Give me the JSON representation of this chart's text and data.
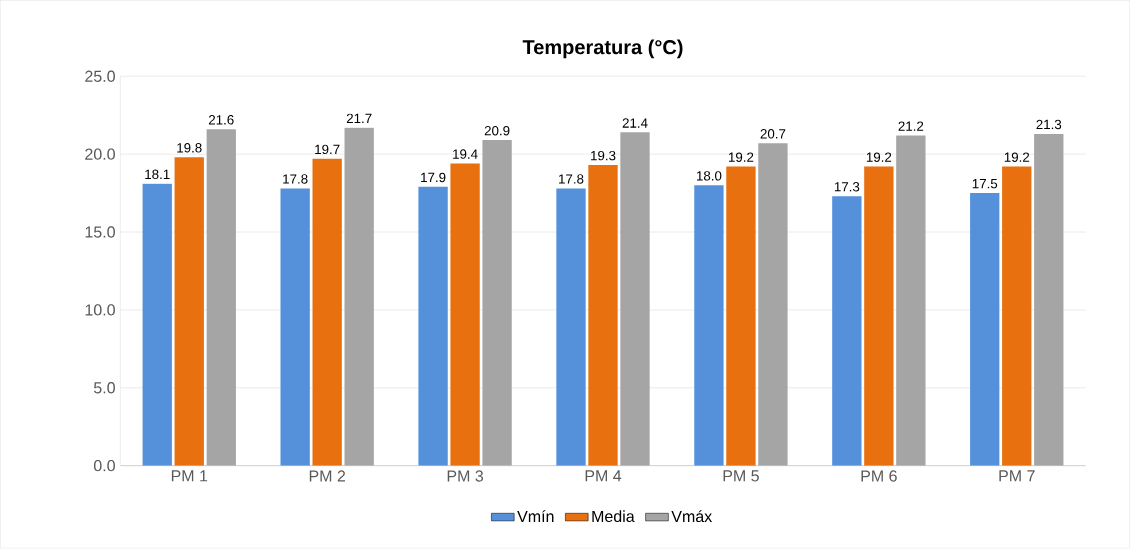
{
  "chart_data": {
    "type": "bar",
    "title": "Temperatura (°C)",
    "categories": [
      "PM 1",
      "PM 2",
      "PM 3",
      "PM 4",
      "PM 5",
      "PM 6",
      "PM 7"
    ],
    "series": [
      {
        "name": "Vmín",
        "color": "#5590db",
        "values": [
          18.1,
          17.8,
          17.9,
          17.8,
          18.0,
          17.3,
          17.5
        ],
        "value_labels": [
          "18.1",
          "17.8",
          "17.9",
          "17.8",
          "18.0",
          "17.3",
          "17.5"
        ]
      },
      {
        "name": "Media",
        "color": "#e8700f",
        "values": [
          19.8,
          19.7,
          19.4,
          19.3,
          19.2,
          19.2,
          19.2
        ],
        "value_labels": [
          "19.8",
          "19.7",
          "19.4",
          "19.3",
          "19.2",
          "19.2",
          "19.2"
        ]
      },
      {
        "name": "Vmáx",
        "color": "#a5a5a5",
        "values": [
          21.6,
          21.7,
          20.9,
          21.4,
          20.7,
          21.2,
          21.3
        ],
        "value_labels": [
          "21.6",
          "21.7",
          "20.9",
          "21.4",
          "20.7",
          "21.2",
          "21.3"
        ]
      }
    ],
    "ylim": [
      0,
      25
    ],
    "yticks": [
      {
        "value": 0,
        "label": "0.0"
      },
      {
        "value": 5,
        "label": "5.0"
      },
      {
        "value": 10,
        "label": "10.0"
      },
      {
        "value": 15,
        "label": "15.0"
      },
      {
        "value": 20,
        "label": "20.0"
      },
      {
        "value": 25,
        "label": "25.0"
      }
    ],
    "grid": "y",
    "legend": "bottom"
  }
}
